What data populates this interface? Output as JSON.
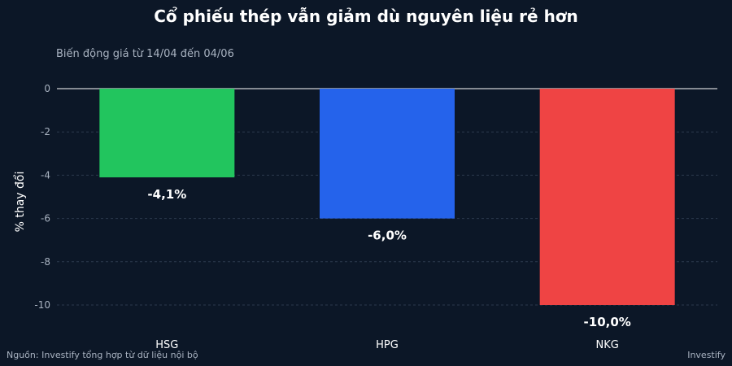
{
  "title": "Cổ phiếu thép vẫn giảm dù nguyên liệu rẻ hơn",
  "subtitle": "Biến động giá từ 14/04 đến 04/06",
  "source": "Nguồn: Investify tổng hợp từ dữ liệu nội bộ",
  "brand": "Investify",
  "chart_data": {
    "type": "bar",
    "categories": [
      "HSG",
      "HPG",
      "NKG"
    ],
    "values": [
      -4.1,
      -6.0,
      -10.0
    ],
    "data_labels": [
      "-4,1%",
      "-6,0%",
      "-10,0%"
    ],
    "colors": [
      "#22c55e",
      "#2563eb",
      "#ef4444"
    ],
    "ylabel": "% thay đổi",
    "xlabel": "",
    "ylim": [
      -10.9,
      0
    ],
    "yticks": [
      0,
      -2,
      -4,
      -6,
      -8,
      -10
    ],
    "grid": true,
    "legend": "none"
  }
}
